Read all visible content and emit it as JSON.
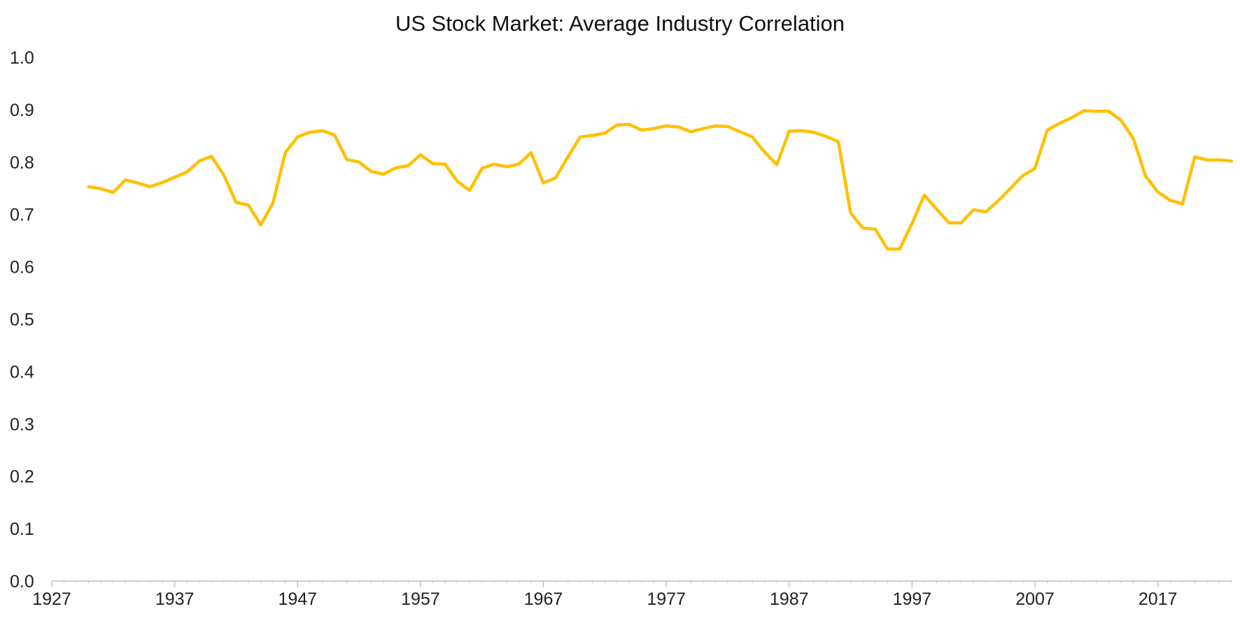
{
  "chart_data": {
    "type": "line",
    "title": "US Stock Market: Average Industry Correlation",
    "xlabel": "",
    "ylabel": "",
    "xlim": [
      1927,
      2023
    ],
    "ylim": [
      0.0,
      1.0
    ],
    "x_ticks": [
      1927,
      1937,
      1947,
      1957,
      1967,
      1977,
      1987,
      1997,
      2007,
      2017
    ],
    "y_ticks": [
      "0.0",
      "0.1",
      "0.2",
      "0.3",
      "0.4",
      "0.5",
      "0.6",
      "0.7",
      "0.8",
      "0.9",
      "1.0"
    ],
    "grid": false,
    "legend": "none",
    "series": [
      {
        "color": "#FFC000",
        "x": [
          1930,
          1931,
          1932,
          1933,
          1934,
          1935,
          1936,
          1937,
          1938,
          1939,
          1940,
          1941,
          1942,
          1943,
          1944,
          1945,
          1946,
          1947,
          1948,
          1949,
          1950,
          1951,
          1952,
          1953,
          1954,
          1955,
          1956,
          1957,
          1958,
          1959,
          1960,
          1961,
          1962,
          1963,
          1964,
          1965,
          1966,
          1967,
          1968,
          1969,
          1970,
          1971,
          1972,
          1973,
          1974,
          1975,
          1976,
          1977,
          1978,
          1979,
          1980,
          1981,
          1982,
          1983,
          1984,
          1985,
          1986,
          1987,
          1988,
          1989,
          1990,
          1991,
          1992,
          1993,
          1994,
          1995,
          1996,
          1997,
          1998,
          1999,
          2000,
          2001,
          2002,
          2003,
          2004,
          2005,
          2006,
          2007,
          2008,
          2009,
          2010,
          2011,
          2012,
          2013,
          2014,
          2015,
          2016,
          2017,
          2018,
          2019,
          2020,
          2021,
          2022,
          2023
        ],
        "values": [
          0.753,
          0.749,
          0.742,
          0.766,
          0.76,
          0.753,
          0.761,
          0.771,
          0.781,
          0.802,
          0.811,
          0.775,
          0.723,
          0.718,
          0.68,
          0.722,
          0.818,
          0.848,
          0.857,
          0.86,
          0.852,
          0.805,
          0.8,
          0.782,
          0.777,
          0.789,
          0.793,
          0.814,
          0.797,
          0.796,
          0.763,
          0.746,
          0.788,
          0.796,
          0.791,
          0.796,
          0.818,
          0.76,
          0.77,
          0.81,
          0.848,
          0.851,
          0.855,
          0.871,
          0.872,
          0.861,
          0.864,
          0.869,
          0.867,
          0.858,
          0.864,
          0.869,
          0.868,
          0.858,
          0.848,
          0.819,
          0.795,
          0.859,
          0.86,
          0.857,
          0.849,
          0.839,
          0.703,
          0.674,
          0.672,
          0.634,
          0.634,
          0.683,
          0.737,
          0.71,
          0.684,
          0.684,
          0.709,
          0.705,
          0.726,
          0.75,
          0.774,
          0.788,
          0.861,
          0.874,
          0.885,
          0.898,
          0.897,
          0.897,
          0.88,
          0.845,
          0.773,
          0.743,
          0.727,
          0.72,
          0.81,
          0.804,
          0.804,
          0.802
        ]
      }
    ]
  }
}
